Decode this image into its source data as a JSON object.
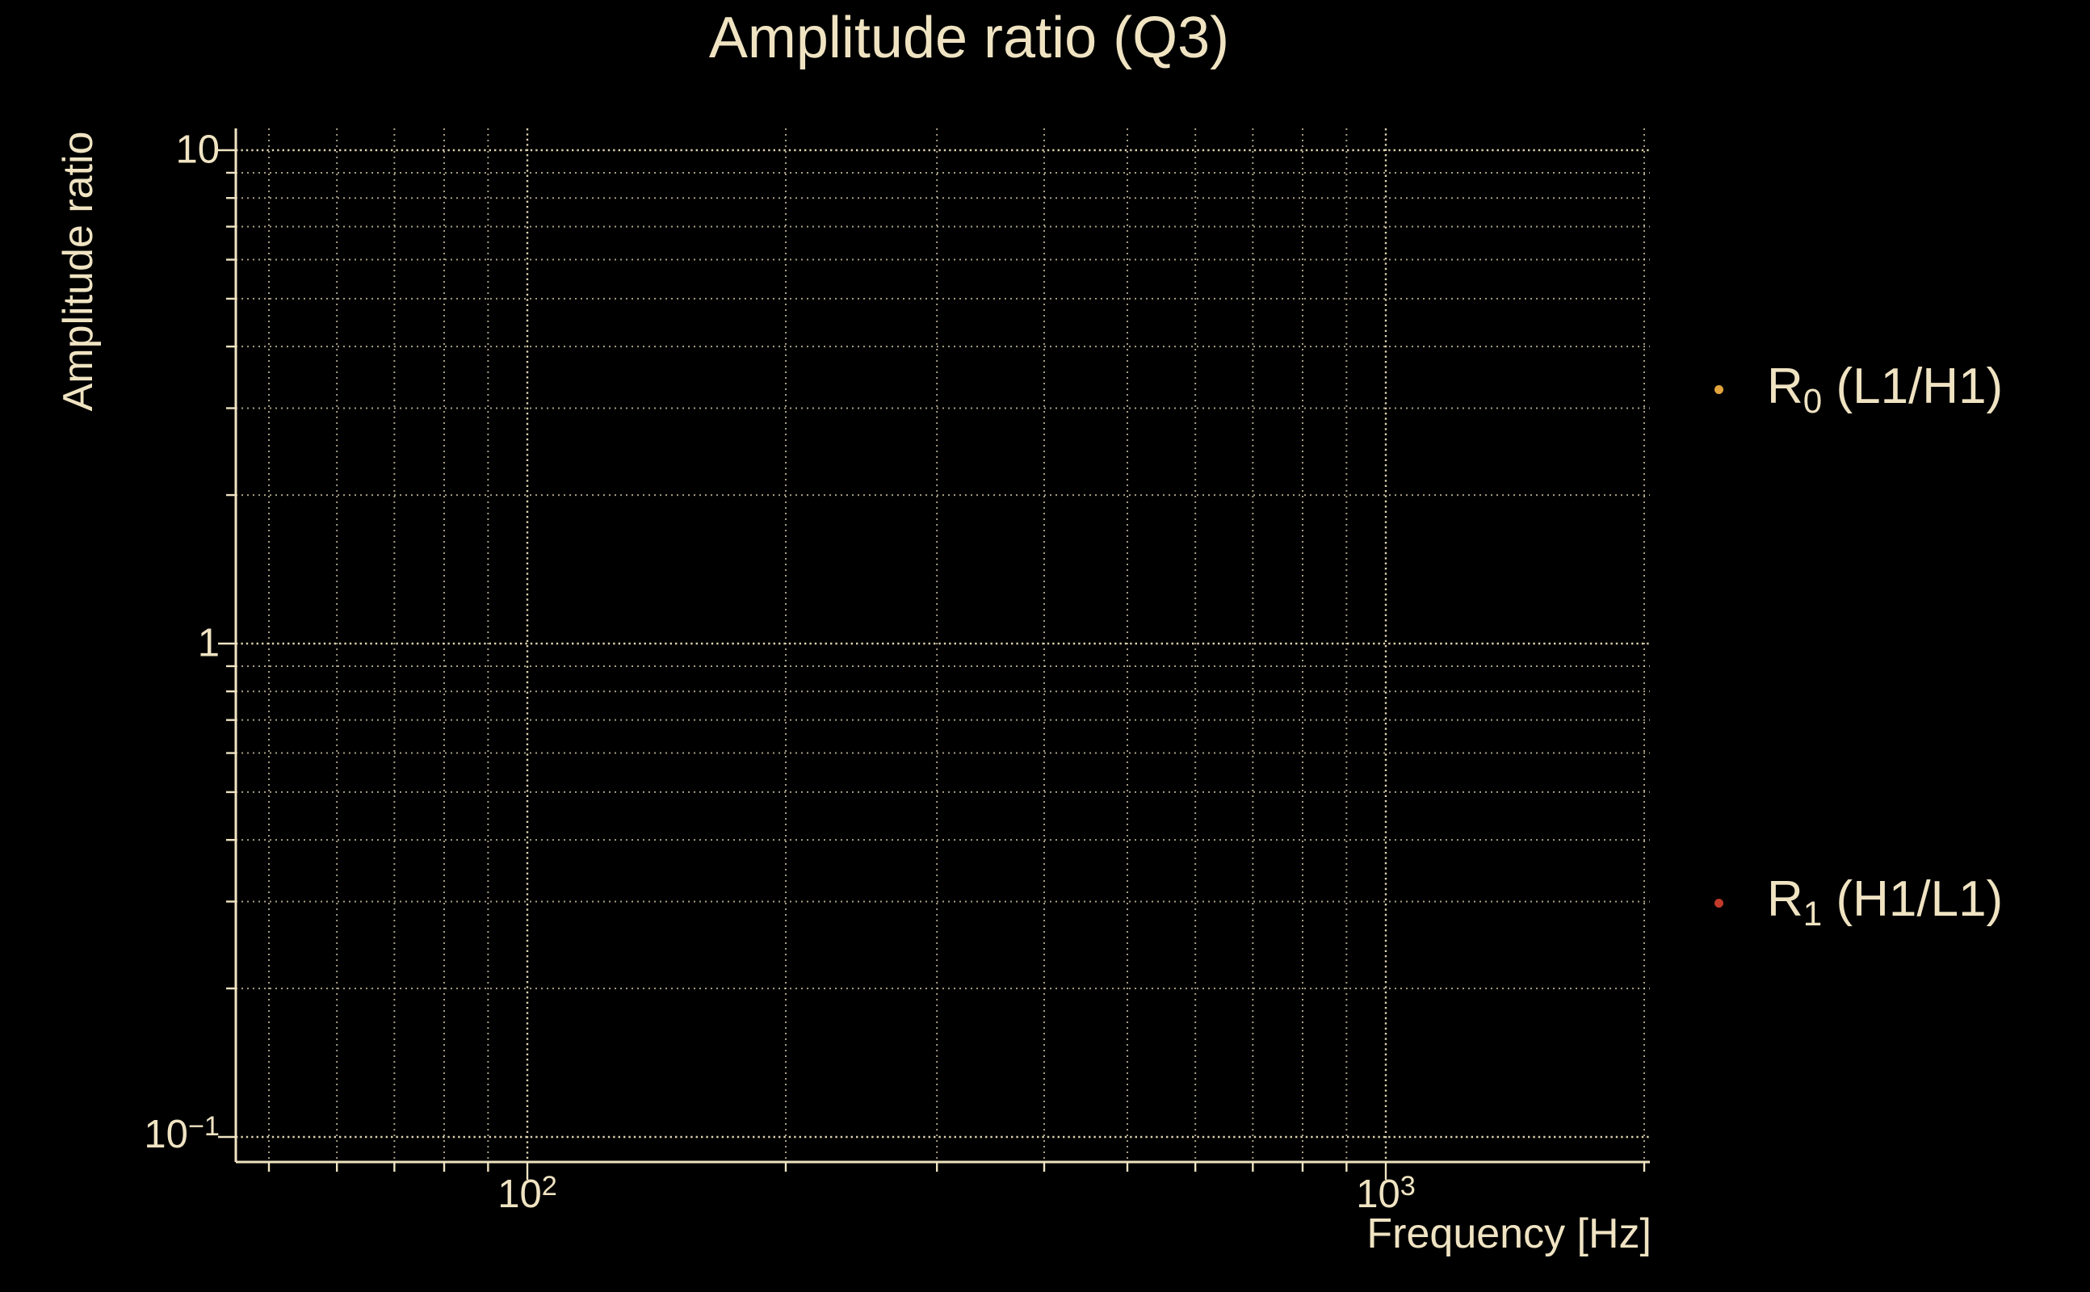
{
  "title": "Amplitude ratio (Q3)",
  "colors": {
    "background": "#000000",
    "foreground": "#efe3c2",
    "grid": "#e9ddb9",
    "series_r0": "#e2a43c",
    "series_r1": "#c23a2a"
  },
  "chart_data": {
    "type": "scatter",
    "title": "Amplitude ratio (Q3)",
    "xlabel": "Frequency [Hz]",
    "ylabel": "Amplitude ratio",
    "x_scale": "log",
    "y_scale": "log",
    "xlim": [
      45.7,
      2030
    ],
    "ylim": [
      0.09,
      11.1
    ],
    "x_major_ticks": [
      100,
      1000
    ],
    "x_minor_ticks": [
      50,
      60,
      70,
      80,
      90,
      200,
      300,
      400,
      500,
      600,
      700,
      800,
      900,
      2000
    ],
    "y_major_ticks": [
      0.1,
      1,
      10
    ],
    "y_minor_ticks": [
      0.2,
      0.3,
      0.4,
      0.5,
      0.6,
      0.7,
      0.8,
      0.9,
      2,
      3,
      4,
      5,
      6,
      7,
      8,
      9
    ],
    "x_tick_labels": [
      {
        "value": 100,
        "base": "10",
        "exp": "2"
      },
      {
        "value": 1000,
        "base": "10",
        "exp": "3"
      }
    ],
    "y_tick_labels": [
      {
        "value": 10,
        "base": "10",
        "exp": ""
      },
      {
        "value": 1,
        "base": "1",
        "exp": ""
      },
      {
        "value": 0.1,
        "base": "10",
        "exp": "−1"
      }
    ],
    "grid": "major+minor dotted",
    "legend_position": "outside-right",
    "series": [
      {
        "name_pre": "R",
        "name_sub": "0",
        "name_post": " (L1/H1)",
        "marker": "dot",
        "color": "#e2a43c",
        "x": [],
        "y": []
      },
      {
        "name_pre": "R",
        "name_sub": "1",
        "name_post": " (H1/L1)",
        "marker": "dot",
        "color": "#c23a2a",
        "x": [],
        "y": []
      }
    ]
  }
}
